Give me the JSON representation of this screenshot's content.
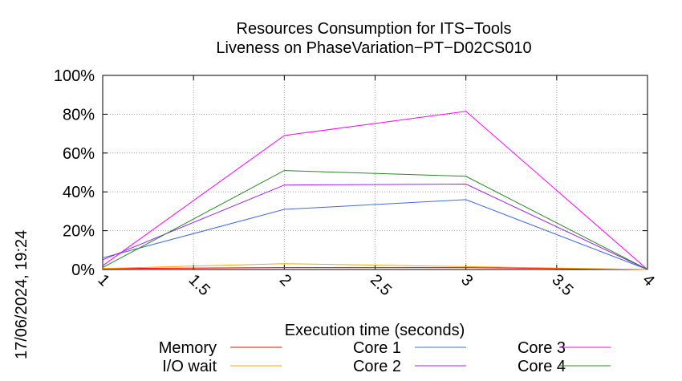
{
  "chart_data": {
    "type": "line",
    "title": "Resources Consumption for ITS−Tools",
    "subtitle": "Liveness on PhaseVariation−PT−D02CS010",
    "xlabel": "Execution time (seconds)",
    "ylabel": "",
    "xlim": [
      1,
      4
    ],
    "ylim": [
      0,
      100
    ],
    "x_ticks": [
      {
        "value": 1,
        "label": "1"
      },
      {
        "value": 1.5,
        "label": "1.5"
      },
      {
        "value": 2,
        "label": "2"
      },
      {
        "value": 2.5,
        "label": "2.5"
      },
      {
        "value": 3,
        "label": "3"
      },
      {
        "value": 3.5,
        "label": "3.5"
      },
      {
        "value": 4,
        "label": "4"
      }
    ],
    "y_ticks": [
      {
        "value": 0,
        "label": "0%"
      },
      {
        "value": 20,
        "label": "20%"
      },
      {
        "value": 40,
        "label": "40%"
      },
      {
        "value": 60,
        "label": "60%"
      },
      {
        "value": 80,
        "label": "80%"
      },
      {
        "value": 100,
        "label": "100%"
      }
    ],
    "grid": true,
    "legend_position": "bottom",
    "x": [
      1,
      2,
      3,
      4
    ],
    "series": [
      {
        "name": "Memory",
        "color": "#ff0000",
        "values": [
          0.5,
          1.0,
          1.0,
          0
        ]
      },
      {
        "name": "I/O wait",
        "color": "#ffa500",
        "values": [
          0.5,
          3.0,
          1.5,
          0
        ]
      },
      {
        "name": "Core 1",
        "color": "#4169e1",
        "values": [
          6,
          31,
          36,
          0
        ]
      },
      {
        "name": "Core 2",
        "color": "#a020f0",
        "values": [
          5,
          43.5,
          44,
          0
        ]
      },
      {
        "name": "Core 3",
        "color": "#ff00ff",
        "values": [
          2,
          69,
          81.5,
          0
        ]
      },
      {
        "name": "Core 4",
        "color": "#228b22",
        "values": [
          1,
          51,
          48,
          0
        ]
      }
    ]
  },
  "timestamp": "17/06/2024, 19:24"
}
